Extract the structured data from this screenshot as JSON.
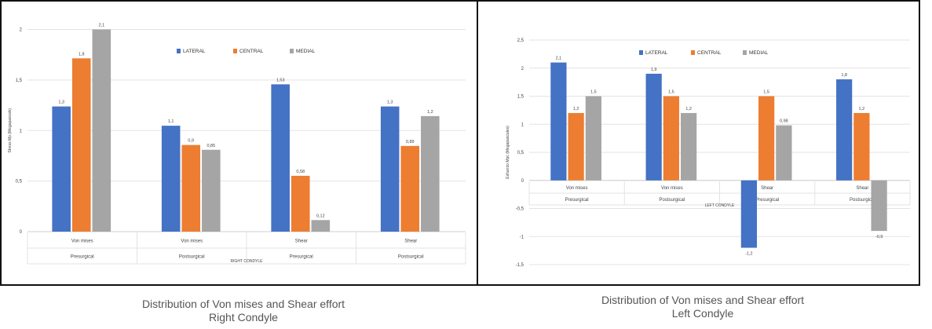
{
  "colors": {
    "lateral": "#4472C4",
    "central": "#ED7D31",
    "medial": "#A5A5A5"
  },
  "captions": {
    "right": {
      "line1": "Distribution of Von mises and Shear effort",
      "line2": "Right Condyle"
    },
    "left": {
      "line1": "Distribution of Von mises and Shear effort",
      "line2": "Left Condyle"
    }
  },
  "chart_data": [
    {
      "type": "bar",
      "title": "",
      "xlabel": "RIGHT CONDYLE",
      "ylabel": "Stress Mp (Megapascals)",
      "ylim": [
        0,
        2.1
      ],
      "yticks": [
        "0",
        "0,5",
        "1",
        "1,5",
        "2"
      ],
      "categories": [
        {
          "top": "Von mises",
          "bottom": "Presurgical"
        },
        {
          "top": "Von mises",
          "bottom": "Postsurgical"
        },
        {
          "top": "Shear",
          "bottom": "Presurgical"
        },
        {
          "top": "Shear",
          "bottom": "Postsurgical"
        }
      ],
      "legend_position": "top-center",
      "grid": true,
      "series": [
        {
          "name": "LATERAL",
          "color_key": "lateral",
          "values": [
            1.3,
            1.1,
            1.53,
            1.3
          ],
          "labels": [
            "1,3",
            "1,1",
            "1,53",
            "1,3"
          ]
        },
        {
          "name": "CENTRAL",
          "color_key": "central",
          "values": [
            1.8,
            0.9,
            0.58,
            0.89
          ],
          "labels": [
            "1,8",
            "0,9",
            "0,58",
            "0,89"
          ]
        },
        {
          "name": "MEDIAL",
          "color_key": "medial",
          "values": [
            2.1,
            0.85,
            0.12,
            1.2
          ],
          "labels": [
            "2,1",
            "0,85",
            "0,12",
            "1,2"
          ]
        }
      ]
    },
    {
      "type": "bar",
      "title": "",
      "xlabel": "LEFT CONDYLE",
      "ylabel": "Esfuerzo Mpc (Megapascales)",
      "ylim": [
        -1.5,
        2.5
      ],
      "yticks": [
        "-1,5",
        "-1",
        "-0,5",
        "0",
        "0,5",
        "1",
        "1,5",
        "2",
        "2,5"
      ],
      "categories": [
        {
          "top": "Von mises",
          "bottom": "Presurgical"
        },
        {
          "top": "Von mises",
          "bottom": "Postsurgical"
        },
        {
          "top": "Shear",
          "bottom": "Presurgical"
        },
        {
          "top": "Shear",
          "bottom": "Postsurgical"
        }
      ],
      "legend_position": "top-center",
      "grid": true,
      "series": [
        {
          "name": "LATERAL",
          "color_key": "lateral",
          "values": [
            2.1,
            1.9,
            -1.2,
            1.8
          ],
          "labels": [
            "2,1",
            "1,9",
            "-1,2",
            "1,8"
          ]
        },
        {
          "name": "CENTRAL",
          "color_key": "central",
          "values": [
            1.2,
            1.5,
            1.5,
            1.2
          ],
          "labels": [
            "1,2",
            "1,5",
            "1,5",
            "1,2"
          ]
        },
        {
          "name": "MEDIAL",
          "color_key": "medial",
          "values": [
            1.5,
            1.2,
            0.98,
            -0.9
          ],
          "labels": [
            "1,5",
            "1,2",
            "0,98",
            "-0,9"
          ]
        }
      ]
    }
  ]
}
